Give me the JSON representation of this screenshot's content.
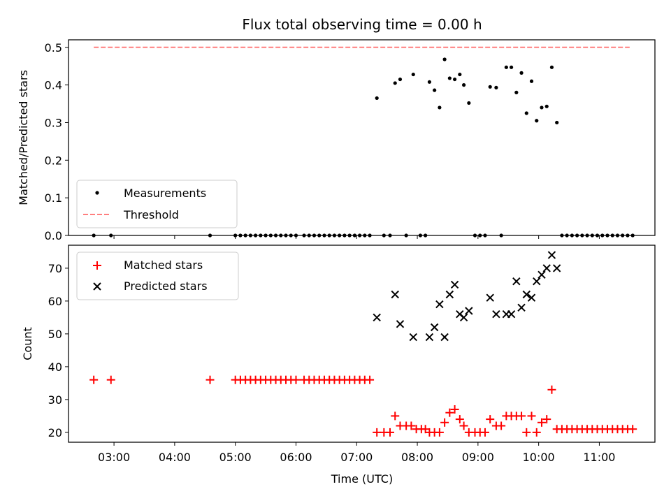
{
  "chart_data": [
    {
      "type": "scatter",
      "title": "Flux total observing time = 0.00 h",
      "xlabel": "",
      "ylabel": "Matched/Predicted stars",
      "ylim": [
        0,
        0.52
      ],
      "xlim": [
        "02:15",
        "11:55"
      ],
      "yticks": [
        "0.0",
        "0.1",
        "0.2",
        "0.3",
        "0.4",
        "0.5"
      ],
      "legend": {
        "position": "lower-left",
        "entries": [
          "Measurements",
          "Threshold"
        ]
      },
      "threshold": {
        "name": "Threshold",
        "value": 0.5,
        "x_start": "02:40",
        "x_end": "11:30",
        "color": "#ff7f7f"
      },
      "series": [
        {
          "name": "Measurements",
          "color": "#000000",
          "points": [
            [
              "02:40",
              0
            ],
            [
              "02:57",
              0
            ],
            [
              "04:35",
              0
            ],
            [
              "05:00",
              0
            ],
            [
              "05:05",
              0
            ],
            [
              "05:10",
              0
            ],
            [
              "05:15",
              0
            ],
            [
              "05:20",
              0
            ],
            [
              "05:25",
              0
            ],
            [
              "05:30",
              0
            ],
            [
              "05:35",
              0
            ],
            [
              "05:40",
              0
            ],
            [
              "05:45",
              0
            ],
            [
              "05:50",
              0
            ],
            [
              "05:55",
              0
            ],
            [
              "06:00",
              0
            ],
            [
              "06:08",
              0
            ],
            [
              "06:13",
              0
            ],
            [
              "06:18",
              0
            ],
            [
              "06:23",
              0
            ],
            [
              "06:28",
              0
            ],
            [
              "06:33",
              0
            ],
            [
              "06:38",
              0
            ],
            [
              "06:43",
              0
            ],
            [
              "06:48",
              0
            ],
            [
              "06:53",
              0
            ],
            [
              "06:58",
              0
            ],
            [
              "07:03",
              0
            ],
            [
              "07:08",
              0
            ],
            [
              "07:13",
              0
            ],
            [
              "07:20",
              0.365
            ],
            [
              "07:27",
              0
            ],
            [
              "07:33",
              0
            ],
            [
              "07:38",
              0.405
            ],
            [
              "07:43",
              0.415
            ],
            [
              "07:49",
              0
            ],
            [
              "07:56",
              0.428
            ],
            [
              "08:03",
              0
            ],
            [
              "08:08",
              0
            ],
            [
              "08:12",
              0.408
            ],
            [
              "08:17",
              0.386
            ],
            [
              "08:22",
              0.34
            ],
            [
              "08:27",
              0.468
            ],
            [
              "08:32",
              0.418
            ],
            [
              "08:37",
              0.415
            ],
            [
              "08:42",
              0.428
            ],
            [
              "08:46",
              0.4
            ],
            [
              "08:51",
              0.352
            ],
            [
              "08:57",
              0
            ],
            [
              "09:02",
              0
            ],
            [
              "09:07",
              0
            ],
            [
              "09:12",
              0.395
            ],
            [
              "09:18",
              0.393
            ],
            [
              "09:23",
              0
            ],
            [
              "09:28",
              0.447
            ],
            [
              "09:33",
              0.447
            ],
            [
              "09:38",
              0.38
            ],
            [
              "09:43",
              0.432
            ],
            [
              "09:48",
              0.325
            ],
            [
              "09:53",
              0.41
            ],
            [
              "09:58",
              0.305
            ],
            [
              "10:03",
              0.34
            ],
            [
              "10:08",
              0.343
            ],
            [
              "10:13",
              0.447
            ],
            [
              "10:18",
              0.3
            ],
            [
              "10:23",
              0
            ],
            [
              "10:28",
              0
            ],
            [
              "10:33",
              0
            ],
            [
              "10:38",
              0
            ],
            [
              "10:43",
              0
            ],
            [
              "10:48",
              0
            ],
            [
              "10:53",
              0
            ],
            [
              "10:58",
              0
            ],
            [
              "11:03",
              0
            ],
            [
              "11:08",
              0
            ],
            [
              "11:13",
              0
            ],
            [
              "11:18",
              0
            ],
            [
              "11:23",
              0
            ],
            [
              "11:28",
              0
            ],
            [
              "11:33",
              0
            ]
          ]
        }
      ]
    },
    {
      "type": "scatter",
      "title": "",
      "xlabel": "Time (UTC)",
      "ylabel": "Count",
      "ylim": [
        17,
        77
      ],
      "xlim": [
        "02:15",
        "11:55"
      ],
      "xticks": [
        "03:00",
        "04:00",
        "05:00",
        "06:00",
        "07:00",
        "08:00",
        "09:00",
        "10:00",
        "11:00"
      ],
      "yticks": [
        "20",
        "30",
        "40",
        "50",
        "60",
        "70"
      ],
      "legend": {
        "position": "top-left",
        "entries": [
          "Matched stars",
          "Predicted stars"
        ]
      },
      "series": [
        {
          "name": "Matched stars",
          "color": "#ff0000",
          "marker": "plus",
          "points": [
            [
              "02:40",
              36
            ],
            [
              "02:57",
              36
            ],
            [
              "04:35",
              36
            ],
            [
              "05:00",
              36
            ],
            [
              "05:05",
              36
            ],
            [
              "05:10",
              36
            ],
            [
              "05:15",
              36
            ],
            [
              "05:20",
              36
            ],
            [
              "05:25",
              36
            ],
            [
              "05:30",
              36
            ],
            [
              "05:35",
              36
            ],
            [
              "05:40",
              36
            ],
            [
              "05:45",
              36
            ],
            [
              "05:50",
              36
            ],
            [
              "05:55",
              36
            ],
            [
              "06:00",
              36
            ],
            [
              "06:08",
              36
            ],
            [
              "06:13",
              36
            ],
            [
              "06:18",
              36
            ],
            [
              "06:23",
              36
            ],
            [
              "06:28",
              36
            ],
            [
              "06:33",
              36
            ],
            [
              "06:38",
              36
            ],
            [
              "06:43",
              36
            ],
            [
              "06:48",
              36
            ],
            [
              "06:53",
              36
            ],
            [
              "06:58",
              36
            ],
            [
              "07:03",
              36
            ],
            [
              "07:08",
              36
            ],
            [
              "07:13",
              36
            ],
            [
              "07:20",
              20
            ],
            [
              "07:27",
              20
            ],
            [
              "07:33",
              20
            ],
            [
              "07:38",
              25
            ],
            [
              "07:43",
              22
            ],
            [
              "07:49",
              22
            ],
            [
              "07:54",
              22
            ],
            [
              "07:59",
              21
            ],
            [
              "08:04",
              21
            ],
            [
              "08:08",
              21
            ],
            [
              "08:12",
              20
            ],
            [
              "08:17",
              20
            ],
            [
              "08:22",
              20
            ],
            [
              "08:27",
              23
            ],
            [
              "08:32",
              26
            ],
            [
              "08:37",
              27
            ],
            [
              "08:42",
              24
            ],
            [
              "08:46",
              22
            ],
            [
              "08:51",
              20
            ],
            [
              "08:57",
              20
            ],
            [
              "09:02",
              20
            ],
            [
              "09:07",
              20
            ],
            [
              "09:12",
              24
            ],
            [
              "09:18",
              22
            ],
            [
              "09:23",
              22
            ],
            [
              "09:28",
              25
            ],
            [
              "09:33",
              25
            ],
            [
              "09:38",
              25
            ],
            [
              "09:43",
              25
            ],
            [
              "09:48",
              20
            ],
            [
              "09:53",
              25
            ],
            [
              "09:58",
              20
            ],
            [
              "10:03",
              23
            ],
            [
              "10:08",
              24
            ],
            [
              "10:13",
              33
            ],
            [
              "10:18",
              21
            ],
            [
              "10:23",
              21
            ],
            [
              "10:28",
              21
            ],
            [
              "10:33",
              21
            ],
            [
              "10:38",
              21
            ],
            [
              "10:43",
              21
            ],
            [
              "10:48",
              21
            ],
            [
              "10:53",
              21
            ],
            [
              "10:58",
              21
            ],
            [
              "11:03",
              21
            ],
            [
              "11:08",
              21
            ],
            [
              "11:13",
              21
            ],
            [
              "11:18",
              21
            ],
            [
              "11:23",
              21
            ],
            [
              "11:28",
              21
            ],
            [
              "11:33",
              21
            ]
          ]
        },
        {
          "name": "Predicted stars",
          "color": "#000000",
          "marker": "x",
          "points": [
            [
              "07:20",
              55
            ],
            [
              "07:38",
              62
            ],
            [
              "07:43",
              53
            ],
            [
              "07:56",
              49
            ],
            [
              "08:12",
              49
            ],
            [
              "08:17",
              52
            ],
            [
              "08:22",
              59
            ],
            [
              "08:27",
              49
            ],
            [
              "08:32",
              62
            ],
            [
              "08:37",
              65
            ],
            [
              "08:42",
              56
            ],
            [
              "08:46",
              55
            ],
            [
              "08:51",
              57
            ],
            [
              "09:12",
              61
            ],
            [
              "09:18",
              56
            ],
            [
              "09:28",
              56
            ],
            [
              "09:33",
              56
            ],
            [
              "09:38",
              66
            ],
            [
              "09:43",
              58
            ],
            [
              "09:48",
              62
            ],
            [
              "09:53",
              61
            ],
            [
              "09:58",
              66
            ],
            [
              "10:03",
              68
            ],
            [
              "10:08",
              70
            ],
            [
              "10:13",
              74
            ],
            [
              "10:18",
              70
            ]
          ]
        }
      ]
    }
  ]
}
